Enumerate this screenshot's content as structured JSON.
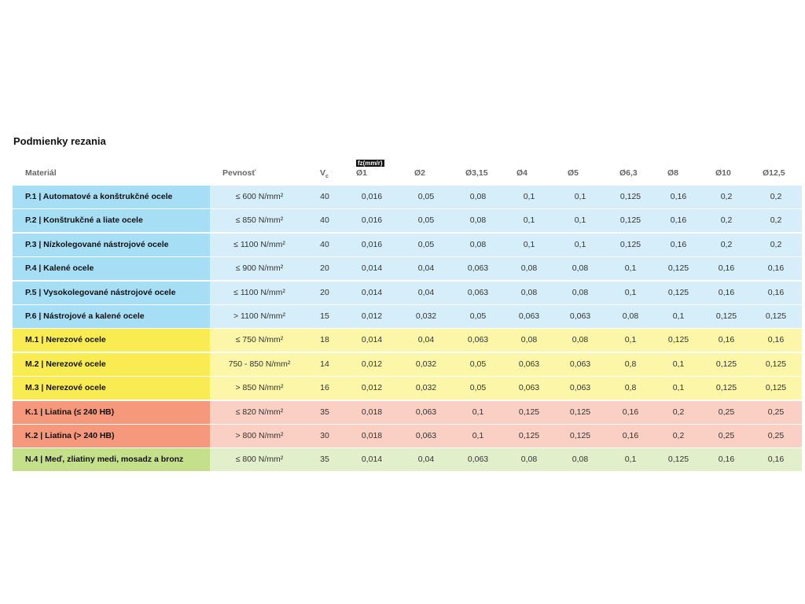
{
  "title": "Podmienky rezania",
  "fz_label": "fz(mm/r)",
  "header": {
    "material": "Materiál",
    "strength": "Pevnosť",
    "vc": "V",
    "vc_sub": "c",
    "diameters": [
      "Ø1",
      "Ø2",
      "Ø3,15",
      "Ø4",
      "Ø5",
      "Ø6,3",
      "Ø8",
      "Ø10",
      "Ø12,5"
    ]
  },
  "rows": [
    {
      "material": "P.1 | Automatové a konštrukčné ocele",
      "strength": "≤ 600 N/mm²",
      "vc": "40",
      "fz": [
        "0,016",
        "0,05",
        "0,08",
        "0,1",
        "0,1",
        "0,125",
        "0,16",
        "0,2",
        "0,2"
      ]
    },
    {
      "material": "P.2 | Konštrukčné a liate ocele",
      "strength": "≤ 850 N/mm²",
      "vc": "40",
      "fz": [
        "0,016",
        "0,05",
        "0,08",
        "0,1",
        "0,1",
        "0,125",
        "0,16",
        "0,2",
        "0,2"
      ]
    },
    {
      "material": "P.3 | Nízkolegované nástrojové ocele",
      "strength": "≤ 1100 N/mm²",
      "vc": "40",
      "fz": [
        "0,016",
        "0,05",
        "0,08",
        "0,1",
        "0,1",
        "0,125",
        "0,16",
        "0,2",
        "0,2"
      ]
    },
    {
      "material": "P.4 | Kalené ocele",
      "strength": "≤ 900 N/mm²",
      "vc": "20",
      "fz": [
        "0,014",
        "0,04",
        "0,063",
        "0,08",
        "0,08",
        "0,1",
        "0,125",
        "0,16",
        "0,16"
      ]
    },
    {
      "material": "P.5 | Vysokolegované nástrojové ocele",
      "strength": "≤ 1100 N/mm²",
      "vc": "20",
      "fz": [
        "0,014",
        "0,04",
        "0,063",
        "0,08",
        "0,08",
        "0,1",
        "0,125",
        "0,16",
        "0,16"
      ]
    },
    {
      "material": "P.6 | Nástrojové a kalené ocele",
      "strength": "> 1100 N/mm²",
      "vc": "15",
      "fz": [
        "0,012",
        "0,032",
        "0,05",
        "0,063",
        "0,063",
        "0,08",
        "0,1",
        "0,125",
        "0,125"
      ]
    },
    {
      "material": "M.1 | Nerezové ocele",
      "strength": "≤ 750 N/mm²",
      "vc": "18",
      "fz": [
        "0,014",
        "0,04",
        "0,063",
        "0,08",
        "0,08",
        "0,1",
        "0,125",
        "0,16",
        "0,16"
      ]
    },
    {
      "material": "M.2 | Nerezové ocele",
      "strength": "750 - 850 N/mm²",
      "vc": "14",
      "fz": [
        "0,012",
        "0,032",
        "0,05",
        "0,063",
        "0,063",
        "0,8",
        "0,1",
        "0,125",
        "0,125"
      ]
    },
    {
      "material": "M.3 | Nerezové ocele",
      "strength": "> 850 N/mm²",
      "vc": "16",
      "fz": [
        "0,012",
        "0,032",
        "0,05",
        "0,063",
        "0,063",
        "0,8",
        "0,1",
        "0,125",
        "0,125"
      ]
    },
    {
      "material": "K.1 | Liatina (≤ 240 HB)",
      "strength": "≤ 820 N/mm²",
      "vc": "35",
      "fz": [
        "0,018",
        "0,063",
        "0,1",
        "0,125",
        "0,125",
        "0,16",
        "0,2",
        "0,25",
        "0,25"
      ]
    },
    {
      "material": "K.2 | Liatina (> 240 HB)",
      "strength": "> 800 N/mm²",
      "vc": "30",
      "fz": [
        "0,018",
        "0,063",
        "0,1",
        "0,125",
        "0,125",
        "0,16",
        "0,2",
        "0,25",
        "0,25"
      ]
    },
    {
      "material": "N.4 | Meď, zliatiny medi, mosadz a bronz",
      "strength": "≤ 800 N/mm²",
      "vc": "35",
      "fz": [
        "0,014",
        "0,04",
        "0,063",
        "0,08",
        "0,08",
        "0,1",
        "0,125",
        "0,16",
        "0,16"
      ]
    }
  ]
}
